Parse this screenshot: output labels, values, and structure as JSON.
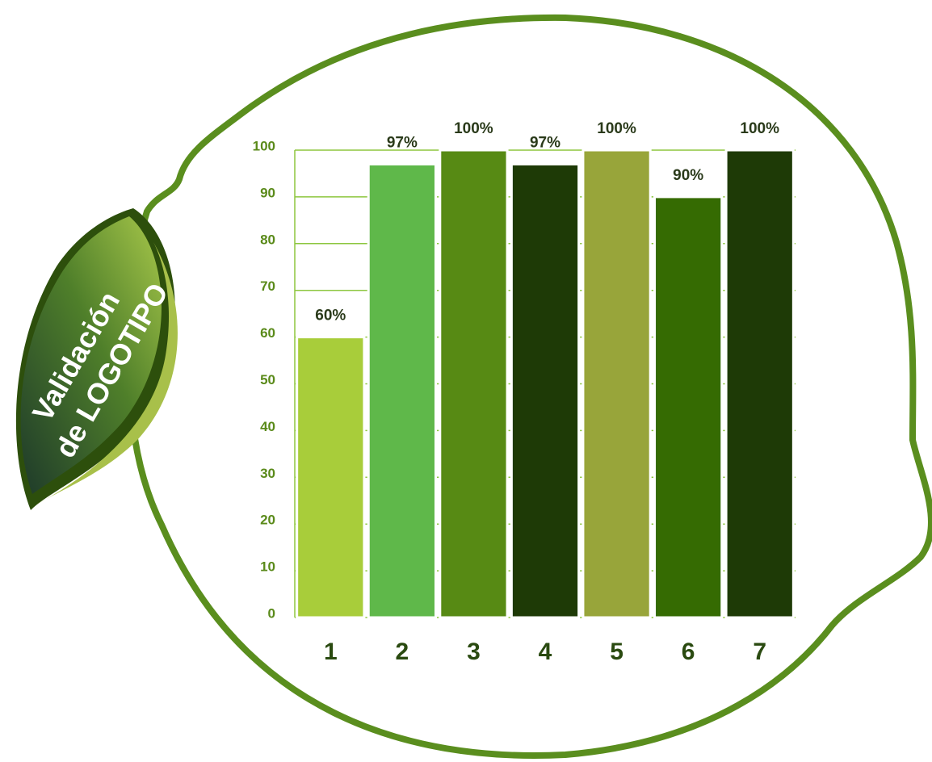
{
  "chart_data": {
    "type": "bar",
    "title": "Validación",
    "subtitle": "de LOGOTIPO",
    "categories": [
      "1",
      "2",
      "3",
      "4",
      "5",
      "6",
      "7"
    ],
    "values": [
      60,
      97,
      100,
      97,
      100,
      90,
      100
    ],
    "value_labels": [
      "60%",
      "97%",
      "100%",
      "97%",
      "100%",
      "90%",
      "100%"
    ],
    "colors": [
      "#a8cd3a",
      "#5fb84a",
      "#578a14",
      "#1e3a06",
      "#98a53a",
      "#356b02",
      "#1e3a06"
    ],
    "ylim": [
      0,
      100
    ],
    "yticks": [
      0,
      10,
      20,
      30,
      40,
      50,
      60,
      70,
      80,
      90,
      100
    ],
    "grid": true
  }
}
